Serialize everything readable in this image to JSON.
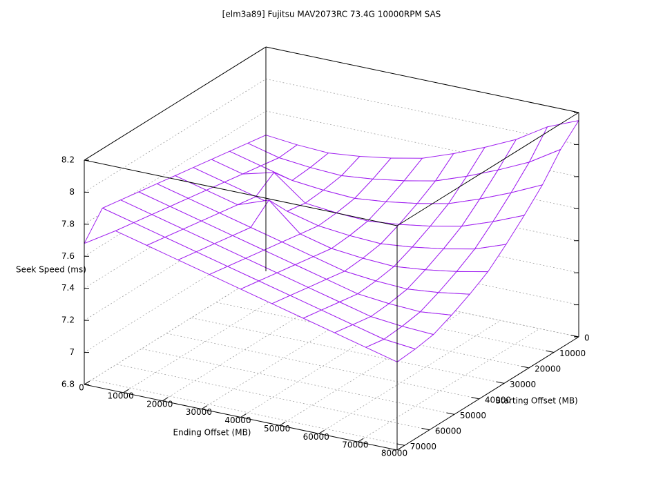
{
  "chart_data": {
    "type": "surface",
    "title": "[elm3a89] Fujitsu MAV2073RC 73.4G 10000RPM SAS",
    "xlabel": "Ending Offset (MB)",
    "ylabel": "Starting Offset (MB)",
    "zlabel": "Seek Speed (ms)",
    "color": "#a020f0",
    "grid": true,
    "xlim": [
      0,
      80000
    ],
    "ylim": [
      0,
      73000
    ],
    "zlim": [
      6.8,
      8.2
    ],
    "xticks": [
      0,
      10000,
      20000,
      30000,
      40000,
      50000,
      60000,
      70000,
      80000
    ],
    "yticks": [
      0,
      10000,
      20000,
      30000,
      40000,
      50000,
      60000,
      70000
    ],
    "zticks": [
      6.8,
      7,
      7.2,
      7.4,
      7.6,
      7.8,
      8,
      8.2
    ],
    "x": [
      0,
      8000,
      16000,
      24000,
      32000,
      40000,
      48000,
      56000,
      64000,
      72000,
      80000
    ],
    "y": [
      0,
      7300,
      14600,
      21900,
      29200,
      36500,
      43800,
      51100,
      58400,
      65700,
      73000
    ],
    "z": [
      [
        7.65,
        7.63,
        7.62,
        7.64,
        7.67,
        7.71,
        7.78,
        7.86,
        7.95,
        8.07,
        8.15
      ],
      [
        7.67,
        7.62,
        7.6,
        7.59,
        7.61,
        7.64,
        7.68,
        7.75,
        7.83,
        7.92,
        8.04
      ],
      [
        7.69,
        7.64,
        7.59,
        7.57,
        7.56,
        7.58,
        7.61,
        7.65,
        7.72,
        7.8,
        7.89
      ],
      [
        7.71,
        7.66,
        7.71,
        7.56,
        7.54,
        7.53,
        7.55,
        7.58,
        7.62,
        7.69,
        7.77
      ],
      [
        7.73,
        7.68,
        7.63,
        7.58,
        7.53,
        7.51,
        7.5,
        7.52,
        7.55,
        7.59,
        7.66
      ],
      [
        7.75,
        7.7,
        7.65,
        7.72,
        7.55,
        7.5,
        7.48,
        7.47,
        7.49,
        7.52,
        7.56
      ],
      [
        7.77,
        7.72,
        7.67,
        7.62,
        7.57,
        7.52,
        7.47,
        7.45,
        7.44,
        7.46,
        7.49
      ],
      [
        7.79,
        7.74,
        7.69,
        7.64,
        7.59,
        7.54,
        7.49,
        7.44,
        7.42,
        7.41,
        7.43
      ],
      [
        7.81,
        7.76,
        7.71,
        7.66,
        7.61,
        7.56,
        7.51,
        7.46,
        7.41,
        7.39,
        7.38
      ],
      [
        7.83,
        7.78,
        7.73,
        7.68,
        7.63,
        7.58,
        7.53,
        7.48,
        7.43,
        7.38,
        7.36
      ],
      [
        7.68,
        7.8,
        7.75,
        7.7,
        7.65,
        7.6,
        7.55,
        7.5,
        7.45,
        7.4,
        7.35
      ]
    ]
  }
}
